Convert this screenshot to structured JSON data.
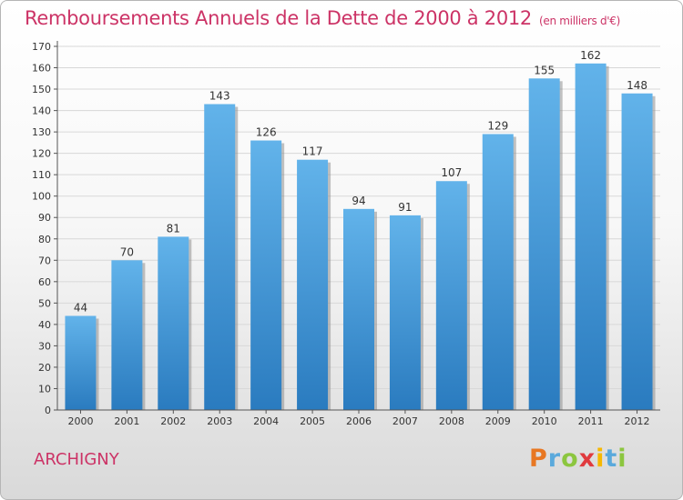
{
  "header": {
    "title": "Remboursements Annuels de la Dette de 2000 à 2012",
    "unit": "(en milliers d'€)"
  },
  "footer": {
    "commune": "ARCHIGNY",
    "logo_letters": [
      "P",
      "r",
      "o",
      "x",
      "i",
      "t",
      "i"
    ],
    "logo_colors": [
      "#e87722",
      "#5aa9dc",
      "#8cc63f",
      "#e03a3e",
      "#f6b800",
      "#5aa9dc",
      "#8cc63f"
    ]
  },
  "colors": {
    "bar_light": "#62b3ea",
    "bar_dark": "#2a7bbf",
    "bar_shadow": "#8f8f8f",
    "axis": "#555555",
    "grid": "#d8d8d8"
  },
  "chart_data": {
    "type": "bar",
    "title": "Remboursements Annuels de la Dette de 2000 à 2012",
    "xlabel": "",
    "ylabel": "",
    "categories": [
      "2000",
      "2001",
      "2002",
      "2003",
      "2004",
      "2005",
      "2006",
      "2007",
      "2008",
      "2009",
      "2010",
      "2011",
      "2012"
    ],
    "values": [
      44,
      70,
      81,
      143,
      126,
      117,
      94,
      91,
      107,
      129,
      155,
      162,
      148
    ],
    "ylim": [
      0,
      170
    ],
    "ytick_step": 10,
    "grid": true
  }
}
